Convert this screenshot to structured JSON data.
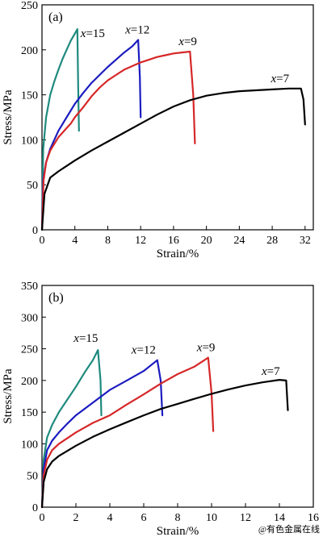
{
  "chart_data": [
    {
      "type": "line",
      "panel_label": "(a)",
      "xlabel": "Strain/%",
      "ylabel": "Stress/MPa",
      "xlim": [
        0,
        33
      ],
      "ylim": [
        0,
        250
      ],
      "xticks": [
        0,
        4,
        8,
        12,
        16,
        20,
        24,
        28,
        32
      ],
      "yticks": [
        0,
        50,
        100,
        150,
        200,
        250
      ],
      "grid": false,
      "legend": "none",
      "series": [
        {
          "name": "x=15",
          "color": "#1f8a7e",
          "x": [
            0,
            0.15,
            0.5,
            1,
            1.5,
            2,
            2.5,
            3,
            3.5,
            4,
            4.3,
            4.4,
            4.5
          ],
          "y": [
            0,
            90,
            125,
            150,
            165,
            178,
            190,
            200,
            210,
            218,
            223,
            160,
            110
          ]
        },
        {
          "name": "x=12",
          "color": "#1c1cc0",
          "x": [
            0,
            0.15,
            0.5,
            1,
            2,
            3,
            4,
            5,
            6,
            7,
            8,
            9,
            10,
            11,
            11.7,
            11.9,
            12
          ],
          "y": [
            0,
            55,
            75,
            90,
            110,
            125,
            140,
            152,
            163,
            172,
            181,
            189,
            197,
            204,
            211,
            170,
            125
          ]
        },
        {
          "name": "x=9",
          "color": "#d62728",
          "x": [
            0,
            0.2,
            0.5,
            1,
            2,
            3,
            3.5,
            4,
            5,
            6,
            7,
            8,
            9,
            10,
            11,
            12,
            13,
            14,
            15,
            16,
            17,
            18,
            18.4,
            18.6
          ],
          "y": [
            0,
            55,
            75,
            88,
            103,
            113,
            118,
            125,
            136,
            148,
            158,
            166,
            172,
            178,
            182,
            186,
            189,
            192,
            194,
            196,
            197,
            198,
            150,
            96
          ]
        },
        {
          "name": "x=7",
          "color": "#000000",
          "x": [
            0,
            0.3,
            1,
            2,
            3,
            4,
            6,
            8,
            10,
            12,
            14,
            16,
            18,
            20,
            22,
            24,
            26,
            28,
            30,
            31.5,
            31.8,
            32
          ],
          "y": [
            0,
            40,
            58,
            65,
            71,
            77,
            88,
            98,
            108,
            118,
            128,
            137,
            144,
            149,
            152,
            154,
            155,
            156,
            157,
            157,
            145,
            117
          ]
        }
      ],
      "annotations": [
        {
          "var": "x",
          "text": "=15",
          "series": "x=15"
        },
        {
          "var": "x",
          "text": "=12",
          "series": "x=12"
        },
        {
          "var": "x",
          "text": "=9",
          "series": "x=9"
        },
        {
          "var": "x",
          "text": "=7",
          "series": "x=7"
        }
      ]
    },
    {
      "type": "line",
      "panel_label": "(b)",
      "xlabel": "Strain/%",
      "ylabel": "Stress/MPa",
      "xlim": [
        0,
        16
      ],
      "ylim": [
        0,
        350
      ],
      "xticks": [
        0,
        2,
        4,
        6,
        8,
        10,
        12,
        14,
        16
      ],
      "yticks": [
        0,
        50,
        100,
        150,
        200,
        250,
        300,
        350
      ],
      "grid": false,
      "legend": "none",
      "series": [
        {
          "name": "x=15",
          "color": "#1f8a7e",
          "x": [
            0,
            0.1,
            0.3,
            0.6,
            1,
            1.5,
            2,
            2.5,
            3,
            3.3,
            3.45,
            3.5
          ],
          "y": [
            0,
            75,
            110,
            130,
            150,
            170,
            190,
            212,
            232,
            248,
            200,
            145
          ]
        },
        {
          "name": "x=12",
          "color": "#1c1cc0",
          "x": [
            0,
            0.1,
            0.3,
            0.6,
            1,
            1.5,
            2,
            3,
            4,
            5,
            6,
            6.8,
            7,
            7.1
          ],
          "y": [
            0,
            60,
            90,
            105,
            118,
            132,
            145,
            165,
            185,
            200,
            215,
            232,
            200,
            145
          ]
        },
        {
          "name": "x=9",
          "color": "#d62728",
          "x": [
            0,
            0.1,
            0.3,
            0.6,
            1,
            2,
            3,
            4,
            5,
            6,
            7,
            8,
            9,
            9.8,
            10,
            10.1
          ],
          "y": [
            0,
            50,
            75,
            90,
            100,
            118,
            133,
            145,
            162,
            178,
            195,
            210,
            222,
            236,
            180,
            120
          ]
        },
        {
          "name": "x=7",
          "color": "#000000",
          "x": [
            0,
            0.1,
            0.3,
            0.6,
            1,
            2,
            3,
            4,
            5,
            6,
            7,
            8,
            9,
            10,
            11,
            12,
            13,
            14,
            14.4,
            14.5
          ],
          "y": [
            0,
            40,
            60,
            72,
            81,
            97,
            111,
            123,
            134,
            145,
            155,
            163,
            171,
            179,
            186,
            192,
            197,
            201,
            200,
            153
          ]
        }
      ],
      "annotations": [
        {
          "var": "x",
          "text": "=15",
          "series": "x=15"
        },
        {
          "var": "x",
          "text": "=12",
          "series": "x=12"
        },
        {
          "var": "x",
          "text": "=9",
          "series": "x=9"
        },
        {
          "var": "x",
          "text": "=7",
          "series": "x=7"
        }
      ]
    }
  ],
  "watermark": "@有色金属在线"
}
